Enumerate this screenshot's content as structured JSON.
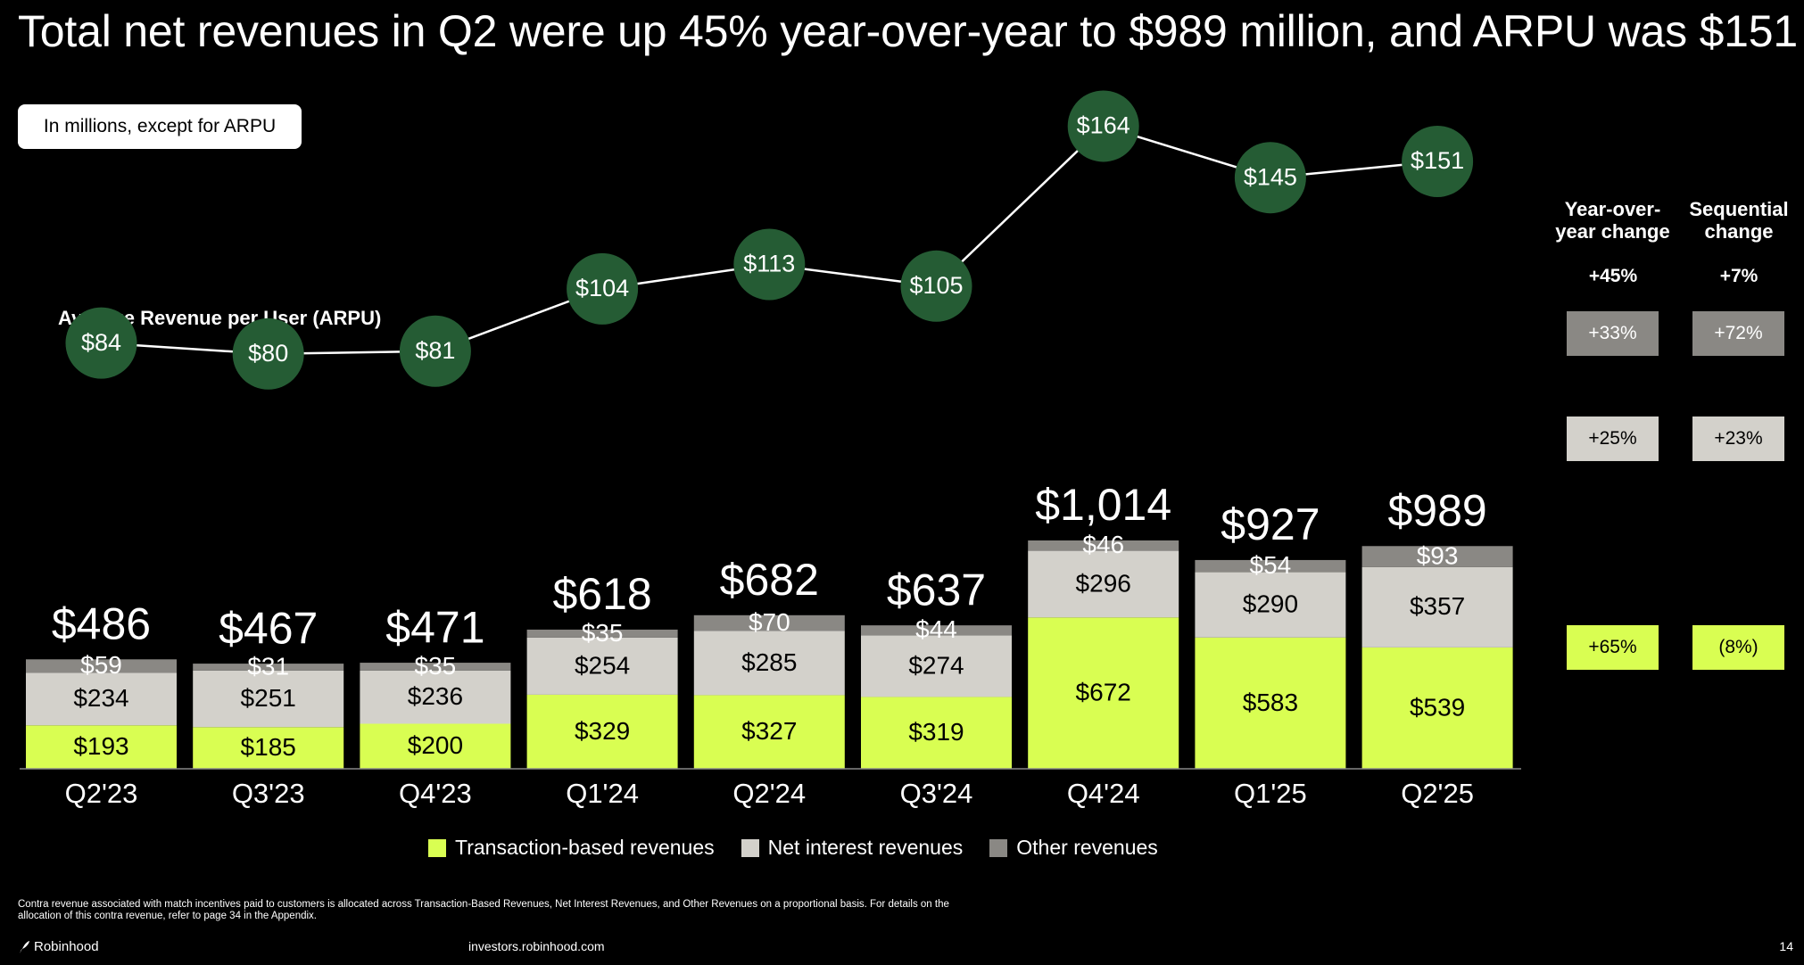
{
  "title": "Total net revenues in Q2 were up 45% year-over-year to $989 million, and ARPU was $151",
  "unit_note": "In millions, except for ARPU",
  "arpu_label": "Average Revenue per User (ARPU)",
  "colors": {
    "transaction": "#d9fe52",
    "net_interest": "#d3d1cb",
    "other": "#8a8884",
    "arpu_circle": "#255c34",
    "background": "#000000"
  },
  "chart_data": {
    "type": "bar",
    "stacked": true,
    "categories": [
      "Q2'23",
      "Q3'23",
      "Q4'23",
      "Q1'24",
      "Q2'24",
      "Q3'24",
      "Q4'24",
      "Q1'25",
      "Q2'25"
    ],
    "series": [
      {
        "name": "Transaction-based revenues",
        "key": "transaction",
        "values": [
          193,
          185,
          200,
          329,
          327,
          319,
          672,
          583,
          539
        ],
        "labels": [
          "$193",
          "$185",
          "$200",
          "$329",
          "$327",
          "$319",
          "$672",
          "$583",
          "$539"
        ]
      },
      {
        "name": "Net interest revenues",
        "key": "net_interest",
        "values": [
          234,
          251,
          236,
          254,
          285,
          274,
          296,
          290,
          357
        ],
        "labels": [
          "$234",
          "$251",
          "$236",
          "$254",
          "$285",
          "$274",
          "$296",
          "$290",
          "$357"
        ]
      },
      {
        "name": "Other revenues",
        "key": "other",
        "values": [
          59,
          31,
          35,
          35,
          70,
          44,
          46,
          54,
          93
        ],
        "labels": [
          "$59",
          "$31",
          "$35",
          "$35",
          "$70",
          "$44",
          "$46",
          "$54",
          "$93"
        ]
      }
    ],
    "totals": [
      486,
      467,
      471,
      618,
      682,
      637,
      1014,
      927,
      989
    ],
    "total_labels": [
      "$486",
      "$467",
      "$471",
      "$618",
      "$682",
      "$637",
      "$1,014",
      "$927",
      "$989"
    ],
    "arpu": {
      "name": "Average Revenue per User (ARPU)",
      "type": "line",
      "values": [
        84,
        80,
        81,
        104,
        113,
        105,
        164,
        145,
        151
      ],
      "labels": [
        "$84",
        "$80",
        "$81",
        "$104",
        "$113",
        "$105",
        "$164",
        "$145",
        "$151"
      ]
    },
    "ylim": [
      0,
      1050
    ]
  },
  "changes": {
    "yoy_header": "Year-over-year change",
    "seq_header": "Sequential change",
    "total_yoy": "+45%",
    "total_seq": "+7%",
    "other_yoy": "+33%",
    "other_seq": "+72%",
    "net_yoy": "+25%",
    "net_seq": "+23%",
    "trans_yoy": "+65%",
    "trans_seq": "(8%)"
  },
  "legend": {
    "transaction": "Transaction-based revenues",
    "net_interest": "Net interest revenues",
    "other": "Other revenues"
  },
  "footnote": "Contra revenue associated with match incentives paid to customers is allocated across Transaction-Based Revenues, Net Interest Revenues, and Other Revenues on a proportional basis. For details on the allocation of this contra revenue, refer to page 34 in the Appendix.",
  "footer": {
    "brand": "Robinhood",
    "url": "investors.robinhood.com",
    "page": "14"
  }
}
